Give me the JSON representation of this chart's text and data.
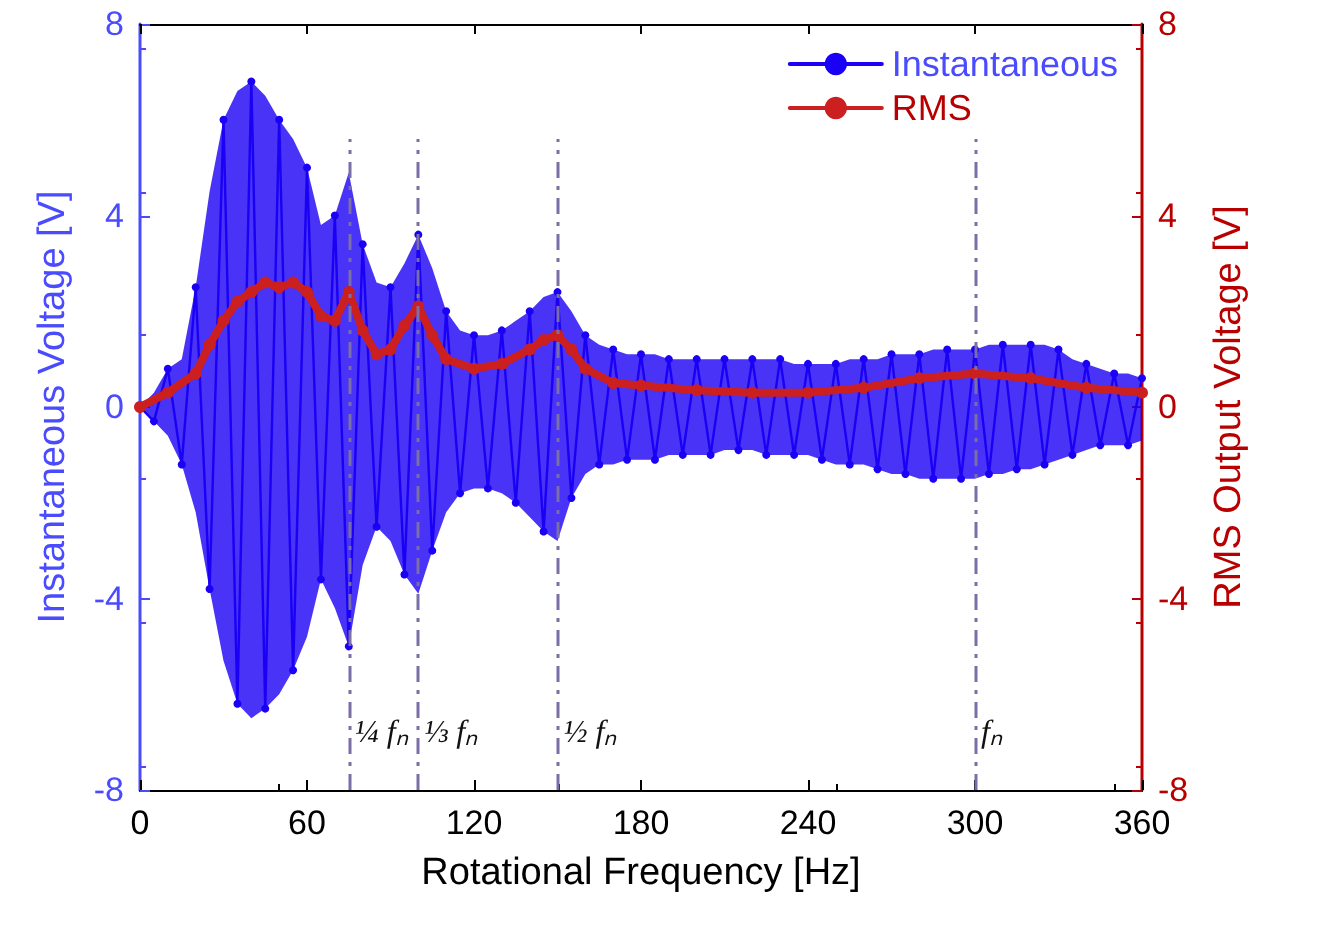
{
  "chart_data": {
    "type": "line",
    "xlabel": "Rotational Frequency [Hz]",
    "ylabel": "Instantaneous Voltage [V]",
    "y2label": "RMS Output Voltage [V]",
    "xlim": [
      0,
      360
    ],
    "xticks": [
      0,
      60,
      120,
      180,
      240,
      300,
      360
    ],
    "ylim": [
      -8,
      8
    ],
    "yticks": [
      -8,
      -4,
      0,
      4,
      8
    ],
    "y2lim": [
      -8,
      8
    ],
    "y2ticks": [
      -8,
      -4,
      0,
      4,
      8
    ],
    "legend": "top right",
    "grid": false,
    "marker": "circle",
    "series": [
      {
        "name": "Instantaneous",
        "color": "#1a00f5",
        "axis": "y",
        "x": [
          0,
          5,
          10,
          15,
          20,
          25,
          30,
          35,
          40,
          45,
          50,
          55,
          60,
          65,
          70,
          75,
          80,
          85,
          90,
          95,
          100,
          105,
          110,
          115,
          120,
          125,
          130,
          135,
          140,
          145,
          150,
          155,
          160,
          165,
          170,
          175,
          180,
          185,
          190,
          195,
          200,
          205,
          210,
          215,
          220,
          225,
          230,
          235,
          240,
          245,
          250,
          255,
          260,
          265,
          270,
          275,
          280,
          285,
          290,
          295,
          300,
          305,
          310,
          315,
          320,
          325,
          330,
          335,
          340,
          345,
          350,
          355,
          360
        ],
        "values": [
          0,
          -0.3,
          0.8,
          -1.2,
          2.5,
          -3.8,
          6.0,
          -6.2,
          6.8,
          -6.3,
          6.0,
          -5.5,
          5.0,
          -3.6,
          4.0,
          -5.0,
          3.4,
          -2.5,
          2.5,
          -3.5,
          3.6,
          -3.0,
          2.0,
          -1.8,
          1.5,
          -1.7,
          1.6,
          -2.0,
          2.0,
          -2.6,
          2.4,
          -1.9,
          1.5,
          -1.2,
          1.2,
          -1.1,
          1.1,
          -1.1,
          1.0,
          -1.0,
          1.0,
          -1.0,
          1.0,
          -0.9,
          1.0,
          -1.0,
          1.0,
          -1.0,
          0.9,
          -1.1,
          0.9,
          -1.2,
          1.0,
          -1.3,
          1.1,
          -1.4,
          1.1,
          -1.5,
          1.2,
          -1.5,
          1.2,
          -1.4,
          1.3,
          -1.3,
          1.3,
          -1.2,
          1.2,
          -1.0,
          0.9,
          -0.8,
          0.7,
          -0.8,
          0.6
        ],
        "upper": [
          0,
          0.3,
          0.8,
          1.0,
          2.5,
          4.5,
          6.0,
          6.6,
          6.8,
          6.5,
          6.0,
          5.6,
          5.0,
          3.8,
          4.0,
          4.9,
          3.4,
          2.6,
          2.5,
          3.0,
          3.6,
          2.9,
          2.0,
          1.6,
          1.5,
          1.5,
          1.6,
          1.8,
          2.0,
          2.3,
          2.4,
          2.0,
          1.5,
          1.3,
          1.2,
          1.1,
          1.1,
          1.1,
          1.0,
          1.0,
          1.0,
          1.0,
          1.0,
          1.0,
          1.0,
          1.0,
          1.0,
          0.9,
          0.9,
          0.9,
          0.9,
          1.0,
          1.0,
          1.0,
          1.1,
          1.1,
          1.1,
          1.2,
          1.2,
          1.2,
          1.2,
          1.3,
          1.3,
          1.3,
          1.3,
          1.3,
          1.2,
          1.0,
          0.9,
          0.8,
          0.7,
          0.7,
          0.6
        ],
        "lower": [
          0,
          -0.3,
          -0.6,
          -1.2,
          -2.2,
          -3.8,
          -5.3,
          -6.2,
          -6.5,
          -6.3,
          -6.0,
          -5.5,
          -4.8,
          -3.6,
          -4.2,
          -5.0,
          -3.3,
          -2.5,
          -2.8,
          -3.5,
          -3.9,
          -3.0,
          -2.2,
          -1.8,
          -1.7,
          -1.7,
          -1.8,
          -2.0,
          -2.3,
          -2.6,
          -2.8,
          -1.9,
          -1.4,
          -1.2,
          -1.2,
          -1.1,
          -1.1,
          -1.1,
          -1.0,
          -1.0,
          -1.0,
          -1.0,
          -0.9,
          -0.9,
          -0.9,
          -1.0,
          -1.0,
          -1.0,
          -1.0,
          -1.1,
          -1.2,
          -1.2,
          -1.2,
          -1.3,
          -1.4,
          -1.4,
          -1.5,
          -1.5,
          -1.5,
          -1.5,
          -1.5,
          -1.4,
          -1.4,
          -1.3,
          -1.3,
          -1.2,
          -1.1,
          -1.0,
          -0.9,
          -0.8,
          -0.8,
          -0.8,
          -0.7
        ]
      },
      {
        "name": "RMS",
        "color": "#cc1f1f",
        "axis": "y2",
        "x": [
          0,
          10,
          20,
          25,
          30,
          35,
          40,
          45,
          50,
          55,
          60,
          65,
          70,
          75,
          80,
          85,
          90,
          95,
          100,
          105,
          110,
          120,
          130,
          140,
          145,
          150,
          155,
          160,
          170,
          180,
          200,
          220,
          240,
          260,
          280,
          300,
          320,
          340,
          360
        ],
        "values": [
          0,
          0.3,
          0.7,
          1.3,
          1.8,
          2.2,
          2.4,
          2.6,
          2.5,
          2.6,
          2.4,
          1.9,
          1.8,
          2.4,
          1.6,
          1.1,
          1.2,
          1.7,
          2.1,
          1.5,
          1.0,
          0.8,
          0.9,
          1.2,
          1.4,
          1.5,
          1.2,
          0.8,
          0.5,
          0.45,
          0.35,
          0.3,
          0.3,
          0.4,
          0.6,
          0.7,
          0.6,
          0.4,
          0.3
        ]
      }
    ],
    "ref_lines": [
      {
        "axis": "x",
        "value": 75,
        "label": "¼ fₙ",
        "color": "#7b6ea6",
        "line_style": "dashed"
      },
      {
        "axis": "x",
        "value": 100,
        "label": "⅓ fₙ",
        "color": "#7b6ea6",
        "line_style": "dashed"
      },
      {
        "axis": "x",
        "value": 150,
        "label": "½ fₙ",
        "color": "#7b6ea6",
        "line_style": "dashed"
      },
      {
        "axis": "x",
        "value": 300,
        "label": "fₙ",
        "color": "#7b6ea6",
        "line_style": "dashed"
      }
    ]
  }
}
